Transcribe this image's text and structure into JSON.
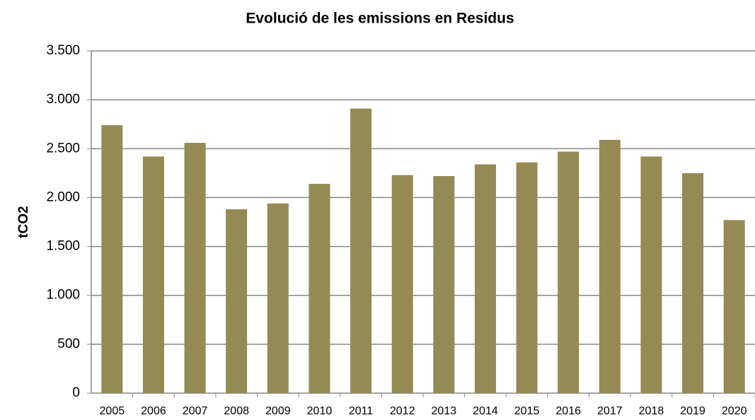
{
  "chart_data": {
    "type": "bar",
    "title": "Evolució de les emissions en Residus",
    "y_label": "tCO2",
    "categories": [
      "2005",
      "2006",
      "2007",
      "2008",
      "2009",
      "2010",
      "2011",
      "2012",
      "2013",
      "2014",
      "2015",
      "2016",
      "2017",
      "2018",
      "2019",
      "2020"
    ],
    "values": [
      2740,
      2420,
      2560,
      1880,
      1940,
      2140,
      2910,
      2230,
      2220,
      2340,
      2360,
      2470,
      2590,
      2420,
      2250,
      1770
    ],
    "color": "#948a54",
    "ylim": [
      0,
      3500
    ],
    "yticks": [
      0,
      500,
      {
        "value": 1000,
        "label": "1.000"
      },
      {
        "value": 1500,
        "label": "1.500"
      },
      {
        "value": 2000,
        "label": "2.000"
      },
      {
        "value": 2500,
        "label": "2.500"
      },
      {
        "value": 3000,
        "label": "3.000"
      },
      {
        "value": 3500,
        "label": "3.500"
      }
    ],
    "grid": true
  }
}
